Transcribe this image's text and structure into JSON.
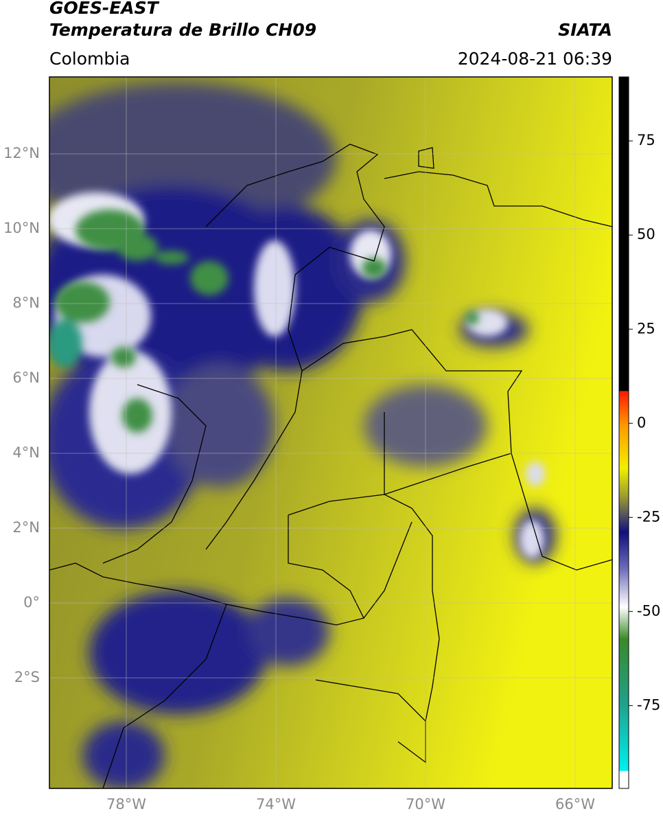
{
  "header": {
    "title": "GOES-EAST",
    "subtitle": "Temperatura de Brillo CH09",
    "source": "SIATA",
    "region": "Colombia",
    "timestamp": "2024-08-21 06:39"
  },
  "map": {
    "lat_labels": [
      "12°N",
      "10°N",
      "8°N",
      "6°N",
      "4°N",
      "2°N",
      "0°",
      "2°S"
    ],
    "lon_labels": [
      "78°W",
      "74°W",
      "70°W",
      "66°W"
    ]
  },
  "colorbar": {
    "range": [
      -97,
      92
    ],
    "ticks": [
      75,
      50,
      25,
      0,
      -25,
      -50,
      -75
    ]
  }
}
